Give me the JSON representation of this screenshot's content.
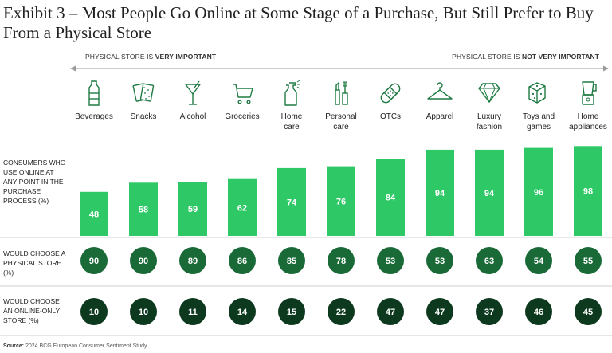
{
  "title": "Exhibit 3 – Most People Go Online at Some Stage of a Purchase, But Still Prefer to Buy From a Physical Store",
  "scale": {
    "left_prefix": "PHYSICAL STORE IS ",
    "left_bold": "VERY IMPORTANT",
    "right_prefix": "PHYSICAL STORE IS ",
    "right_bold": "NOT VERY IMPORTANT"
  },
  "rows": {
    "online": "CONSUMERS WHO USE ONLINE AT ANY POINT IN THE PURCHASE PROCESS (%)",
    "physical": "WOULD CHOOSE A PHYSICAL STORE (%)",
    "online_only": "WOULD CHOOSE AN ONLINE-ONLY STORE (%)"
  },
  "source": {
    "label": "Source:",
    "text": " 2024 BCG European Consumer Sentiment Study."
  },
  "colors": {
    "bar": "#2ec866",
    "physical_circle": "#1a6a38",
    "online_only_circle": "#0d3a1f",
    "icon": "#1f7a43",
    "divider": "#cfcfcf"
  },
  "chart_data": {
    "type": "bar",
    "categories": [
      "Beverages",
      "Snacks",
      "Alcohol",
      "Groceries",
      "Home care",
      "Personal care",
      "OTCs",
      "Apparel",
      "Luxury fashion",
      "Toys and games",
      "Home appliances"
    ],
    "category_lines": [
      [
        "Beverages"
      ],
      [
        "Snacks"
      ],
      [
        "Alcohol"
      ],
      [
        "Groceries"
      ],
      [
        "Home",
        "care"
      ],
      [
        "Personal",
        "care"
      ],
      [
        "OTCs"
      ],
      [
        "Apparel"
      ],
      [
        "Luxury",
        "fashion"
      ],
      [
        "Toys and",
        "games"
      ],
      [
        "Home",
        "appliances"
      ]
    ],
    "icons": [
      "bottle-icon",
      "snacks-icon",
      "cocktail-icon",
      "shopping-cart-icon",
      "spray-bottle-icon",
      "cosmetics-icon",
      "bandage-icon",
      "hanger-icon",
      "diamond-icon",
      "dice-icon",
      "blender-icon"
    ],
    "series": [
      {
        "name": "CONSUMERS WHO USE ONLINE AT ANY POINT IN THE PURCHASE PROCESS (%)",
        "values": [
          48,
          58,
          59,
          62,
          74,
          76,
          84,
          94,
          94,
          96,
          98
        ]
      },
      {
        "name": "WOULD CHOOSE A PHYSICAL STORE (%)",
        "values": [
          90,
          90,
          89,
          86,
          85,
          78,
          53,
          53,
          63,
          54,
          55
        ]
      },
      {
        "name": "WOULD CHOOSE AN ONLINE-ONLY STORE (%)",
        "values": [
          10,
          10,
          11,
          14,
          15,
          22,
          47,
          47,
          37,
          46,
          45
        ]
      }
    ],
    "ylim": [
      0,
      100
    ]
  }
}
